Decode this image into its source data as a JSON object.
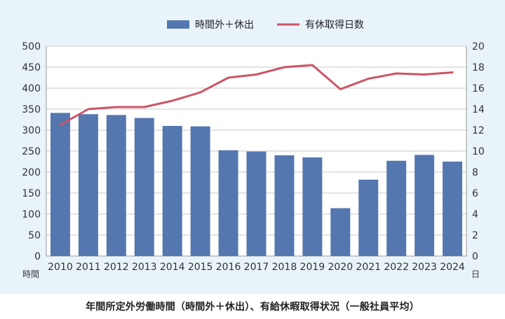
{
  "chart_data": {
    "type": "bar+line",
    "categories": [
      "2010",
      "2011",
      "2012",
      "2013",
      "2014",
      "2015",
      "2016",
      "2017",
      "2018",
      "2019",
      "2020",
      "2021",
      "2022",
      "2023",
      "2024"
    ],
    "series": [
      {
        "name": "時間外＋休出",
        "type": "bar",
        "axis": "left",
        "color": "#5577b0",
        "values": [
          341,
          338,
          336,
          329,
          310,
          309,
          252,
          249,
          240,
          235,
          114,
          182,
          227,
          241,
          225
        ]
      },
      {
        "name": "有休取得日数",
        "type": "line",
        "axis": "right",
        "color": "#cc5566",
        "values": [
          12.5,
          14.0,
          14.2,
          14.2,
          14.8,
          15.6,
          17.0,
          17.3,
          18.0,
          18.2,
          15.9,
          16.9,
          17.4,
          17.3,
          17.5
        ]
      }
    ],
    "y_left": {
      "min": 0,
      "max": 500,
      "step": 50,
      "unit": "時間"
    },
    "y_right": {
      "min": 0,
      "max": 20,
      "step": 2,
      "unit": "日"
    },
    "legend_position": "top-center",
    "title": "年間所定外労働時間（時間外＋休出）、有給休暇取得状況（一般社員平均）"
  }
}
